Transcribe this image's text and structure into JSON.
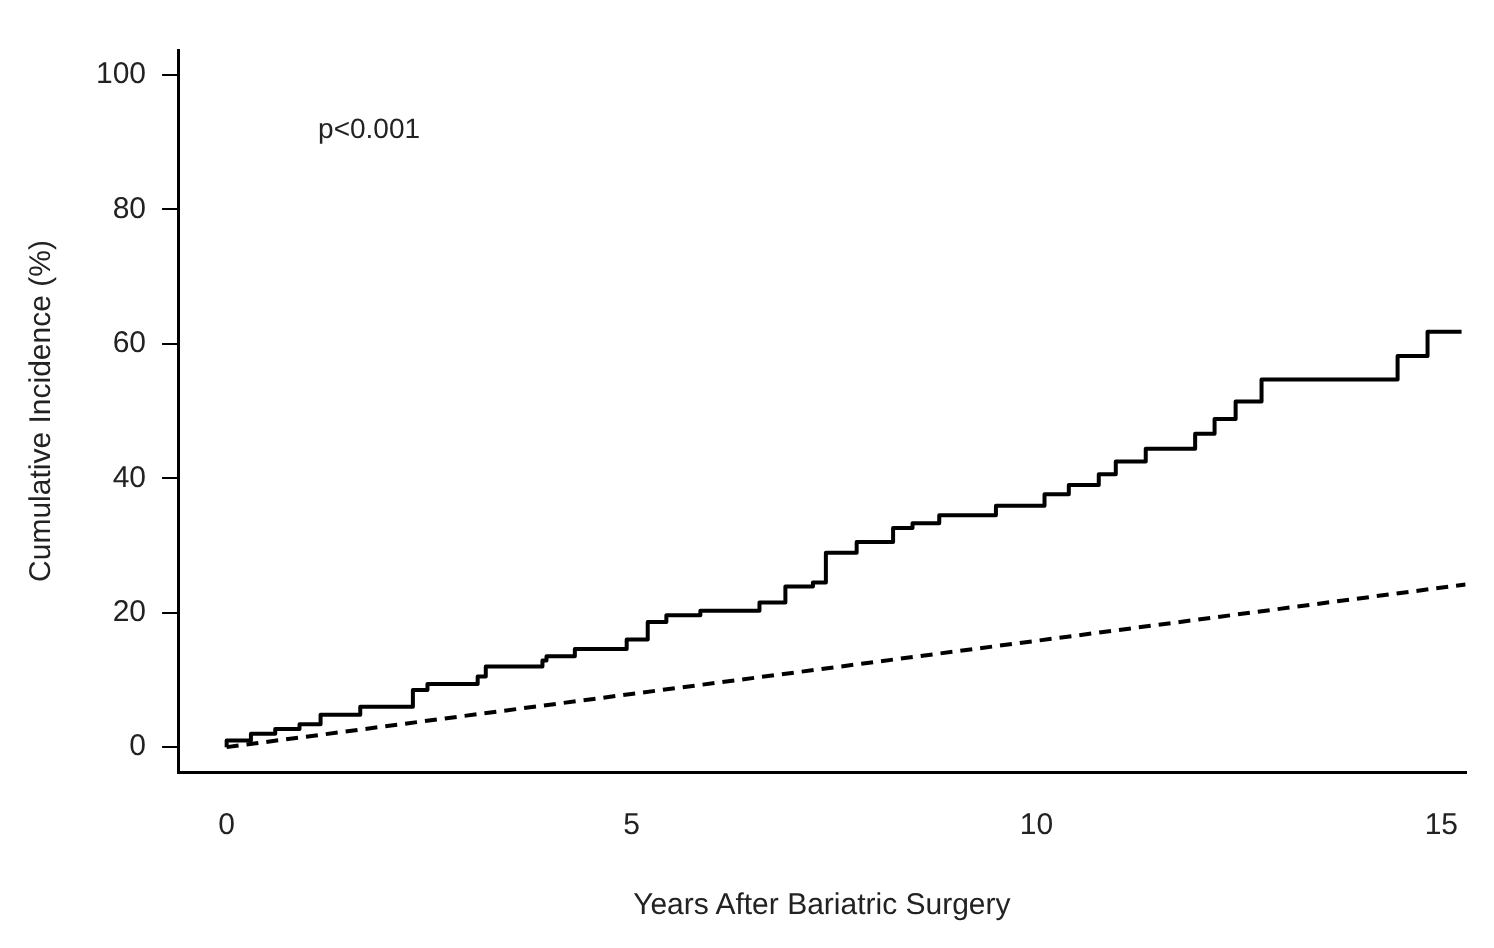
{
  "chart_data": {
    "type": "step",
    "xlabel": "Years After Bariatric Surgery",
    "ylabel": "Cumulative Incidence (%)",
    "annotations": [
      "p<0.001"
    ],
    "xlim": [
      -0.6,
      15.3
    ],
    "ylim": [
      -3.7,
      103.7
    ],
    "xticks": [
      0,
      5,
      10,
      15
    ],
    "yticks": [
      0,
      20,
      40,
      60,
      80,
      100
    ],
    "grid": false,
    "legend": false,
    "series": [
      {
        "color": "#000000",
        "line_style": "solid",
        "x": [
          0,
          0.3,
          0.6,
          0.9,
          1.16,
          1.65,
          2.3,
          2.48,
          3.1,
          3.2,
          3.9,
          3.95,
          4.3,
          4.94,
          5.2,
          5.43,
          5.85,
          6.58,
          6.9,
          7.24,
          7.4,
          7.78,
          8.23,
          8.47,
          8.8,
          9.5,
          10.1,
          10.4,
          10.77,
          10.98,
          11.35,
          11.96,
          12.2,
          12.46,
          12.78,
          14.46,
          14.83,
          15.25
        ],
        "values": [
          0,
          1,
          2,
          2.7,
          3.4,
          4.8,
          6,
          8.5,
          9.4,
          10.5,
          12,
          12.9,
          13.5,
          14.6,
          16,
          18.6,
          19.6,
          20.3,
          21.5,
          23.9,
          24.5,
          28.9,
          30.5,
          32.6,
          33.3,
          34.5,
          35.9,
          37.6,
          39,
          40.6,
          42.5,
          44.4,
          46.6,
          48.8,
          51.4,
          54.7,
          58.2,
          61.8
        ]
      },
      {
        "type": "line",
        "color": "#000000",
        "line_style": "dashed",
        "x": [
          0,
          15.3
        ],
        "values": [
          0,
          24.2
        ]
      }
    ]
  }
}
